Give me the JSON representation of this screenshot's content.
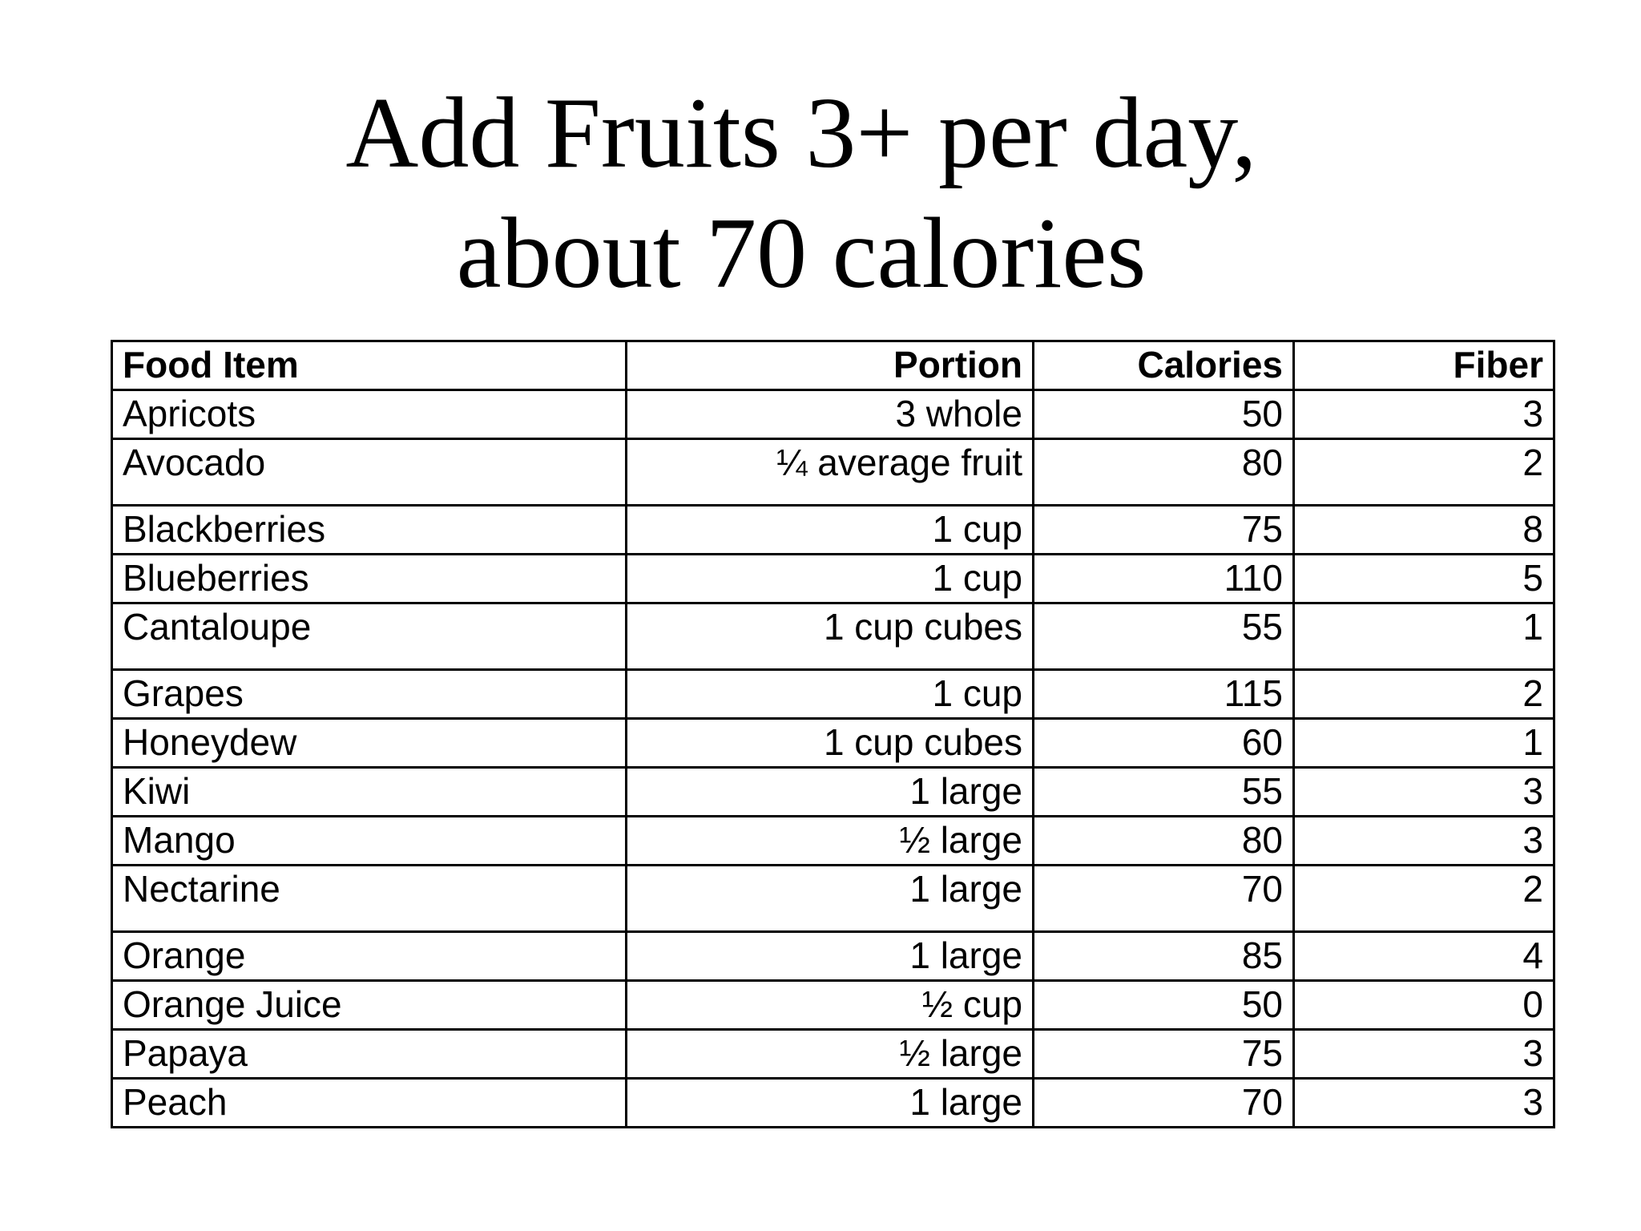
{
  "title": {
    "line1": "Add Fruits 3+ per day,",
    "line2": "about 70 calories"
  },
  "table": {
    "headers": {
      "item": "Food Item",
      "portion": "Portion",
      "calories": "Calories",
      "fiber": "Fiber"
    },
    "rows": [
      {
        "item": "Apricots",
        "portion": "3 whole",
        "calories": "50",
        "fiber": "3"
      },
      {
        "item": "Avocado",
        "portion": "¼ average fruit",
        "calories": "80",
        "fiber": "2"
      },
      {
        "item": "Blackberries",
        "portion": "1 cup",
        "calories": "75",
        "fiber": "8"
      },
      {
        "item": "Blueberries",
        "portion": "1 cup",
        "calories": "110",
        "fiber": "5"
      },
      {
        "item": "Cantaloupe",
        "portion": "1 cup cubes",
        "calories": "55",
        "fiber": "1"
      },
      {
        "item": "Grapes",
        "portion": "1 cup",
        "calories": "115",
        "fiber": "2"
      },
      {
        "item": "Honeydew",
        "portion": "1 cup cubes",
        "calories": "60",
        "fiber": "1"
      },
      {
        "item": "Kiwi",
        "portion": "1 large",
        "calories": "55",
        "fiber": "3"
      },
      {
        "item": "Mango",
        "portion": "½ large",
        "calories": "80",
        "fiber": "3"
      },
      {
        "item": "Nectarine",
        "portion": "1 large",
        "calories": "70",
        "fiber": "2"
      },
      {
        "item": "Orange",
        "portion": "1 large",
        "calories": "85",
        "fiber": "4"
      },
      {
        "item": "Orange Juice",
        "portion": "½ cup",
        "calories": "50",
        "fiber": "0"
      },
      {
        "item": "Papaya",
        "portion": "½ large",
        "calories": "75",
        "fiber": "3"
      },
      {
        "item": "Peach",
        "portion": "1 large",
        "calories": "70",
        "fiber": "3"
      }
    ]
  }
}
